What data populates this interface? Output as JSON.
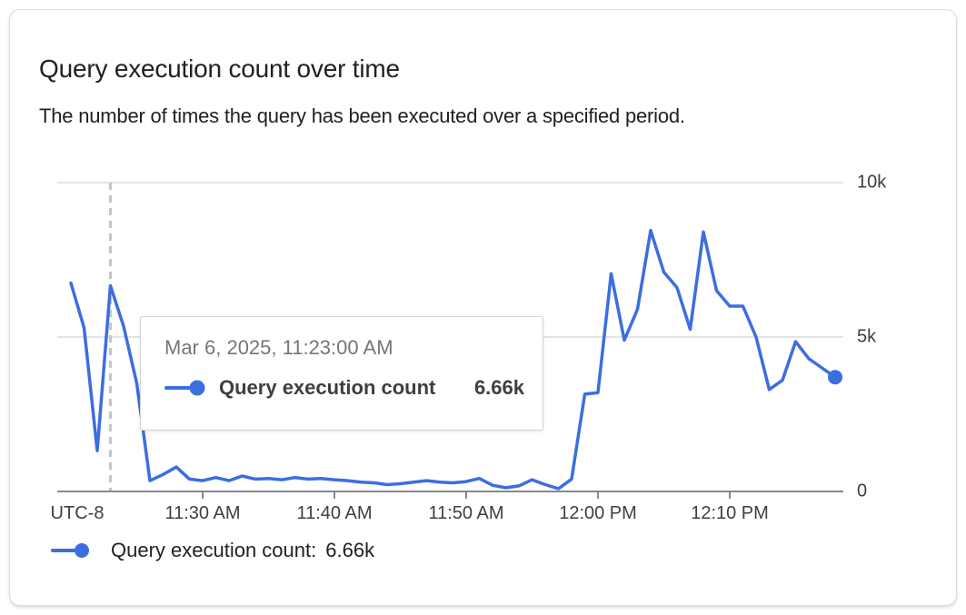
{
  "card": {
    "title": "Query execution count over time",
    "subtitle": "The number of times the query has been executed over a specified period."
  },
  "tooltip": {
    "timestamp": "Mar 6, 2025, 11:23:00 AM",
    "series_label": "Query execution count",
    "value": "6.66k",
    "time": "11:23 AM"
  },
  "legend": {
    "label": "Query execution count:",
    "value": "6.66k"
  },
  "axes": {
    "x_utc_label": "UTC-8",
    "x_ticks": [
      "11:30 AM",
      "11:40 AM",
      "11:50 AM",
      "12:00 PM",
      "12:10 PM"
    ],
    "y_ticks": [
      {
        "label": "10k",
        "value": 10000
      },
      {
        "label": "5k",
        "value": 5000
      },
      {
        "label": "0",
        "value": 0
      }
    ]
  },
  "colors": {
    "series_blue": "#3C6EE0",
    "grid_line": "#E2E4E7",
    "axis_line": "#85898D",
    "crosshair": "#C2C5C9",
    "text_dark": "#202124",
    "text_axis": "#3C4043",
    "text_muted": "#73777B",
    "card_border": "#DADCE0",
    "tooltip_border": "#D2D4D7"
  },
  "chart_data": {
    "type": "line",
    "title": "Query execution count over time",
    "xlabel": "",
    "ylabel": "Query execution count",
    "ylim": [
      0,
      10000
    ],
    "grid": true,
    "legend_position": "bottom",
    "x_tick_labels": [
      "11:30 AM",
      "11:40 AM",
      "11:50 AM",
      "12:00 PM",
      "12:10 PM"
    ],
    "y_tick_labels": [
      "0",
      "5k",
      "10k"
    ],
    "utc_offset_label": "UTC-8",
    "highlight": {
      "time": "11:23 AM",
      "value": 6660,
      "value_label": "6.66k",
      "timestamp": "Mar 6, 2025, 11:23:00 AM"
    },
    "series": [
      {
        "name": "Query execution count",
        "color": "#3C6EE0",
        "x": [
          "11:20 AM",
          "11:21 AM",
          "11:22 AM",
          "11:23 AM",
          "11:24 AM",
          "11:25 AM",
          "11:26 AM",
          "11:27 AM",
          "11:28 AM",
          "11:29 AM",
          "11:30 AM",
          "11:31 AM",
          "11:32 AM",
          "11:33 AM",
          "11:34 AM",
          "11:35 AM",
          "11:36 AM",
          "11:37 AM",
          "11:38 AM",
          "11:39 AM",
          "11:40 AM",
          "11:41 AM",
          "11:42 AM",
          "11:43 AM",
          "11:44 AM",
          "11:45 AM",
          "11:46 AM",
          "11:47 AM",
          "11:48 AM",
          "11:49 AM",
          "11:50 AM",
          "11:51 AM",
          "11:52 AM",
          "11:53 AM",
          "11:54 AM",
          "11:55 AM",
          "11:56 AM",
          "11:57 AM",
          "11:58 AM",
          "11:59 AM",
          "12:00 PM",
          "12:01 PM",
          "12:02 PM",
          "12:03 PM",
          "12:04 PM",
          "12:05 PM",
          "12:06 PM",
          "12:07 PM",
          "12:08 PM",
          "12:09 PM",
          "12:10 PM",
          "12:11 PM",
          "12:12 PM",
          "12:13 PM",
          "12:14 PM",
          "12:15 PM",
          "12:16 PM",
          "12:17 PM",
          "12:18 PM"
        ],
        "values": [
          6750,
          5300,
          1320,
          6660,
          5350,
          3500,
          350,
          550,
          790,
          400,
          350,
          450,
          350,
          500,
          400,
          420,
          380,
          450,
          400,
          420,
          380,
          350,
          300,
          280,
          220,
          250,
          300,
          350,
          300,
          280,
          320,
          420,
          200,
          120,
          180,
          380,
          220,
          90,
          400,
          3150,
          3200,
          7050,
          4900,
          5900,
          8450,
          7100,
          6600,
          5250,
          8400,
          6500,
          6000,
          6000,
          5000,
          3300,
          3600,
          4850,
          4300,
          4000,
          3700
        ]
      }
    ]
  }
}
